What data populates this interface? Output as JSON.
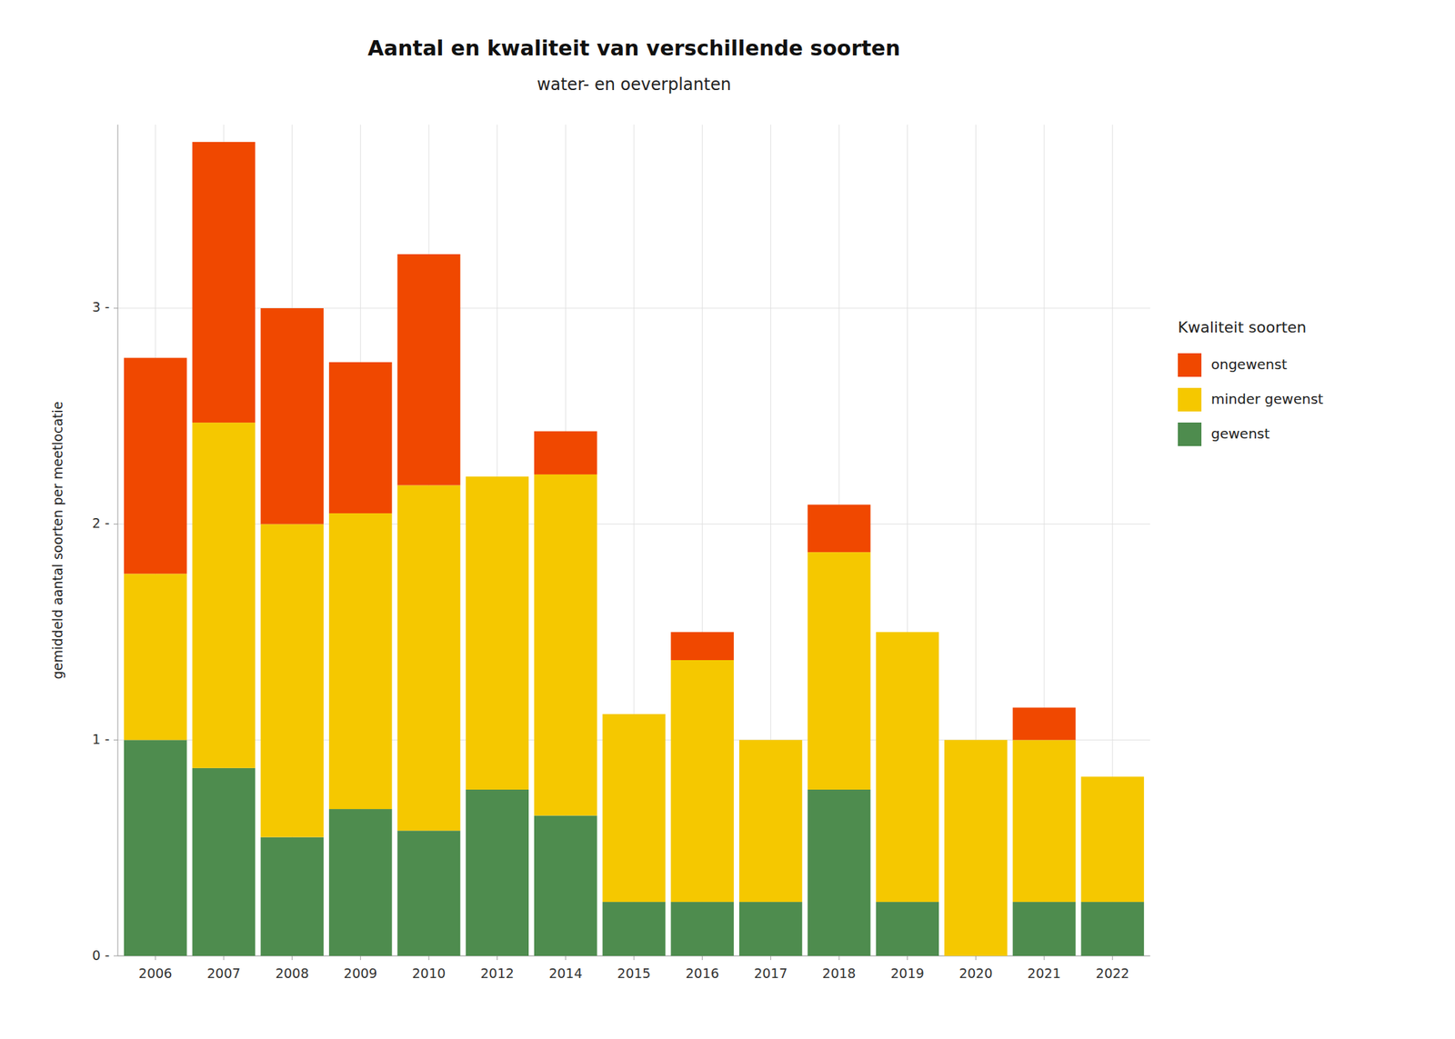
{
  "chart_data": {
    "type": "bar",
    "stacked": true,
    "title": "Aantal en kwaliteit van verschillende soorten",
    "subtitle": "water- en oeverplanten",
    "ylabel": "gemiddeld aantal soorten per meetlocatie",
    "legend_title": "Kwaliteit soorten",
    "legend": "right",
    "grid": true,
    "categories": [
      2006,
      2007,
      2008,
      2009,
      2010,
      2012,
      2014,
      2015,
      2016,
      2017,
      2018,
      2019,
      2020,
      2021,
      2022
    ],
    "series": [
      {
        "name": "gewenst",
        "color": "#4e8c4e",
        "values": [
          1.0,
          0.87,
          0.55,
          0.68,
          0.58,
          0.77,
          0.65,
          0.25,
          0.25,
          0.25,
          0.77,
          0.25,
          0.0,
          0.25,
          0.25
        ]
      },
      {
        "name": "minder gewenst",
        "color": "#f5c800",
        "values": [
          0.77,
          1.6,
          1.45,
          1.37,
          1.6,
          1.45,
          1.58,
          0.87,
          1.12,
          0.75,
          1.1,
          1.25,
          1.0,
          0.75,
          0.58
        ]
      },
      {
        "name": "ongewenst",
        "color": "#f04800",
        "values": [
          1.0,
          1.3,
          1.0,
          0.7,
          1.07,
          0.0,
          0.2,
          0.0,
          0.13,
          0.0,
          0.22,
          0.0,
          0.0,
          0.15,
          0.0
        ]
      }
    ],
    "ylim": [
      0,
      3.85
    ],
    "yticks": [
      {
        "value": 0,
        "label": "0 -"
      },
      {
        "value": 1,
        "label": "1 -"
      },
      {
        "value": 2,
        "label": "2 -"
      },
      {
        "value": 3,
        "label": "3 -"
      }
    ]
  }
}
